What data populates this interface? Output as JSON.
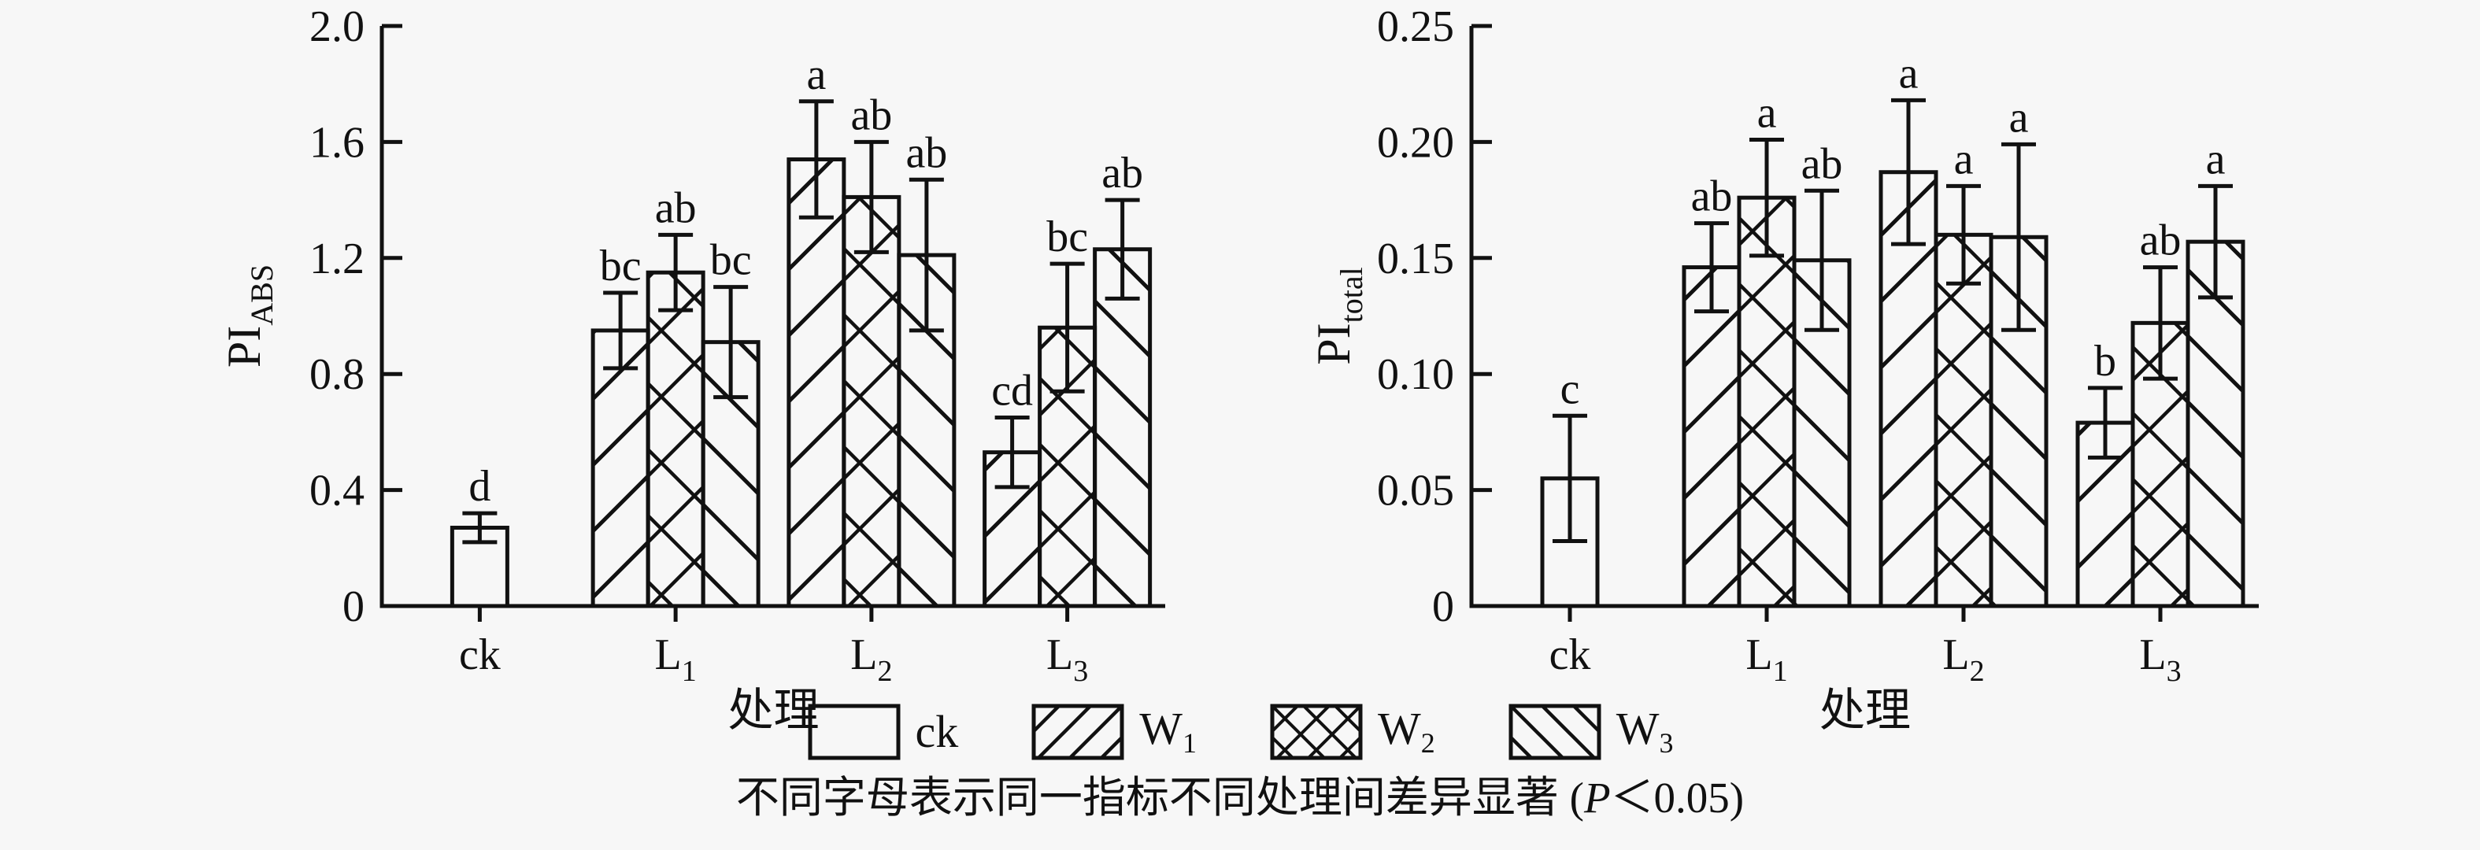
{
  "style": {
    "background": "#f7f7f7",
    "ink": "#111111"
  },
  "series_patterns": {
    "ck": "plain",
    "W1": "forward-diagonal",
    "W2": "cross-diagonal",
    "W3": "back-diagonal"
  },
  "chart_data": [
    {
      "type": "bar",
      "title": "",
      "ylabel": {
        "main": "PI",
        "sub": "ABS"
      },
      "xlabel": "处理",
      "ylim": [
        0,
        2.0
      ],
      "grid": false,
      "legend_position": "bottom-center",
      "yticks": [
        {
          "v": 0,
          "label": "0"
        },
        {
          "v": 0.4,
          "label": "0.4"
        },
        {
          "v": 0.8,
          "label": "0.8"
        },
        {
          "v": 1.2,
          "label": "1.2"
        },
        {
          "v": 1.6,
          "label": "1.6"
        },
        {
          "v": 2.0,
          "label": "2.0"
        }
      ],
      "categories": [
        {
          "base": "ck",
          "sub": ""
        },
        {
          "base": "L",
          "sub": "1"
        },
        {
          "base": "L",
          "sub": "2"
        },
        {
          "base": "L",
          "sub": "3"
        }
      ],
      "groups": [
        [
          {
            "series": "ck",
            "value": 0.27,
            "error": 0.05,
            "letter": "d"
          }
        ],
        [
          {
            "series": "W1",
            "value": 0.95,
            "error": 0.13,
            "letter": "bc"
          },
          {
            "series": "W2",
            "value": 1.15,
            "error": 0.13,
            "letter": "ab"
          },
          {
            "series": "W3",
            "value": 0.91,
            "error": 0.19,
            "letter": "bc"
          }
        ],
        [
          {
            "series": "W1",
            "value": 1.54,
            "error": 0.2,
            "letter": "a"
          },
          {
            "series": "W2",
            "value": 1.41,
            "error": 0.19,
            "letter": "ab"
          },
          {
            "series": "W3",
            "value": 1.21,
            "error": 0.26,
            "letter": "ab"
          }
        ],
        [
          {
            "series": "W1",
            "value": 0.53,
            "error": 0.12,
            "letter": "cd"
          },
          {
            "series": "W2",
            "value": 0.96,
            "error": 0.22,
            "letter": "bc"
          },
          {
            "series": "W3",
            "value": 1.23,
            "error": 0.17,
            "letter": "ab"
          }
        ]
      ]
    },
    {
      "type": "bar",
      "title": "",
      "ylabel": {
        "main": "PI",
        "sub": "total"
      },
      "xlabel": "处理",
      "ylim": [
        0,
        0.25
      ],
      "grid": false,
      "legend_position": "bottom-center",
      "yticks": [
        {
          "v": 0,
          "label": "0"
        },
        {
          "v": 0.05,
          "label": "0.05"
        },
        {
          "v": 0.1,
          "label": "0.10"
        },
        {
          "v": 0.15,
          "label": "0.15"
        },
        {
          "v": 0.2,
          "label": "0.20"
        },
        {
          "v": 0.25,
          "label": "0.25"
        }
      ],
      "categories": [
        {
          "base": "ck",
          "sub": ""
        },
        {
          "base": "L",
          "sub": "1"
        },
        {
          "base": "L",
          "sub": "2"
        },
        {
          "base": "L",
          "sub": "3"
        }
      ],
      "groups": [
        [
          {
            "series": "ck",
            "value": 0.055,
            "error": 0.027,
            "letter": "c"
          }
        ],
        [
          {
            "series": "W1",
            "value": 0.146,
            "error": 0.019,
            "letter": "ab"
          },
          {
            "series": "W2",
            "value": 0.176,
            "error": 0.025,
            "letter": "a"
          },
          {
            "series": "W3",
            "value": 0.149,
            "error": 0.03,
            "letter": "ab"
          }
        ],
        [
          {
            "series": "W1",
            "value": 0.187,
            "error": 0.031,
            "letter": "a"
          },
          {
            "series": "W2",
            "value": 0.16,
            "error": 0.021,
            "letter": "a"
          },
          {
            "series": "W3",
            "value": 0.159,
            "error": 0.04,
            "letter": "a"
          }
        ],
        [
          {
            "series": "W1",
            "value": 0.079,
            "error": 0.015,
            "letter": "b"
          },
          {
            "series": "W2",
            "value": 0.122,
            "error": 0.024,
            "letter": "ab"
          },
          {
            "series": "W3",
            "value": 0.157,
            "error": 0.024,
            "letter": "a"
          }
        ]
      ]
    }
  ],
  "legend": {
    "items": [
      {
        "key": "ck",
        "base": "ck",
        "sub": "",
        "pattern": "plain"
      },
      {
        "key": "W1",
        "base": "W",
        "sub": "1",
        "pattern": "forward-diagonal"
      },
      {
        "key": "W2",
        "base": "W",
        "sub": "2",
        "pattern": "cross-diagonal"
      },
      {
        "key": "W3",
        "base": "W",
        "sub": "3",
        "pattern": "back-diagonal"
      }
    ]
  },
  "caption": {
    "pre": "不同字母表示同一指标不同处理间差异显著 (",
    "italic": "P",
    "post": "＜0.05)"
  }
}
